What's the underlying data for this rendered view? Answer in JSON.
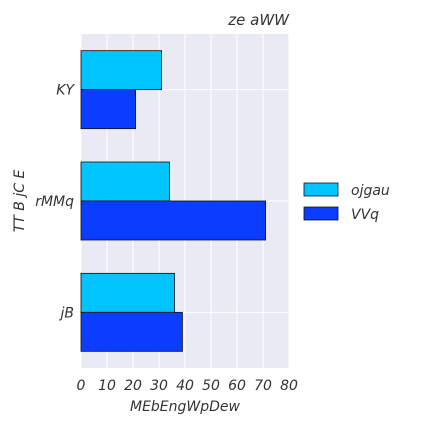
{
  "chart_data": {
    "type": "bar",
    "orientation": "horizontal",
    "title": "ze aWW",
    "xlabel": "MEbEngWpDew",
    "ylabel": "TT B jC E",
    "categories": [
      "KY",
      "rMMq",
      "jB"
    ],
    "series": [
      {
        "name": "ojgau",
        "color": "#00c4ff",
        "values": [
          31,
          34,
          36
        ]
      },
      {
        "name": "VVq",
        "color": "#0a3dff",
        "values": [
          21,
          71,
          39
        ]
      }
    ],
    "xlim": [
      0,
      80
    ],
    "xticks": [
      0,
      10,
      20,
      30,
      40,
      50,
      60,
      70,
      80
    ],
    "grid": true,
    "legend_position": "right"
  }
}
